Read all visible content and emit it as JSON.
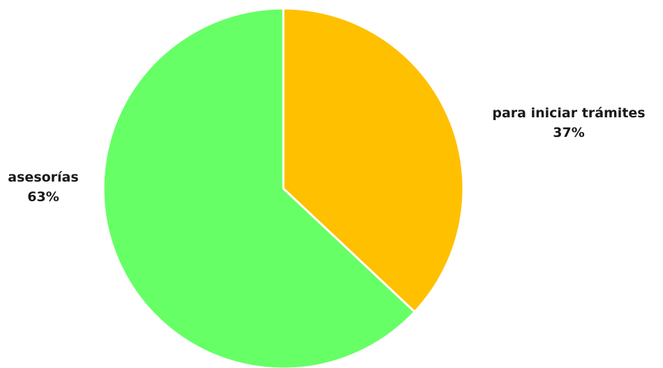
{
  "chart_data": {
    "type": "pie",
    "slices": [
      {
        "label": "para iniciar trámites",
        "value": 37,
        "value_label": "37%",
        "color": "#ffc000"
      },
      {
        "label": "asesorías",
        "value": 63,
        "value_label": "63%",
        "color": "#66ff66"
      }
    ],
    "start_angle_deg": 0,
    "direction": "clockwise",
    "legend": "none",
    "labels_position": "outside"
  }
}
